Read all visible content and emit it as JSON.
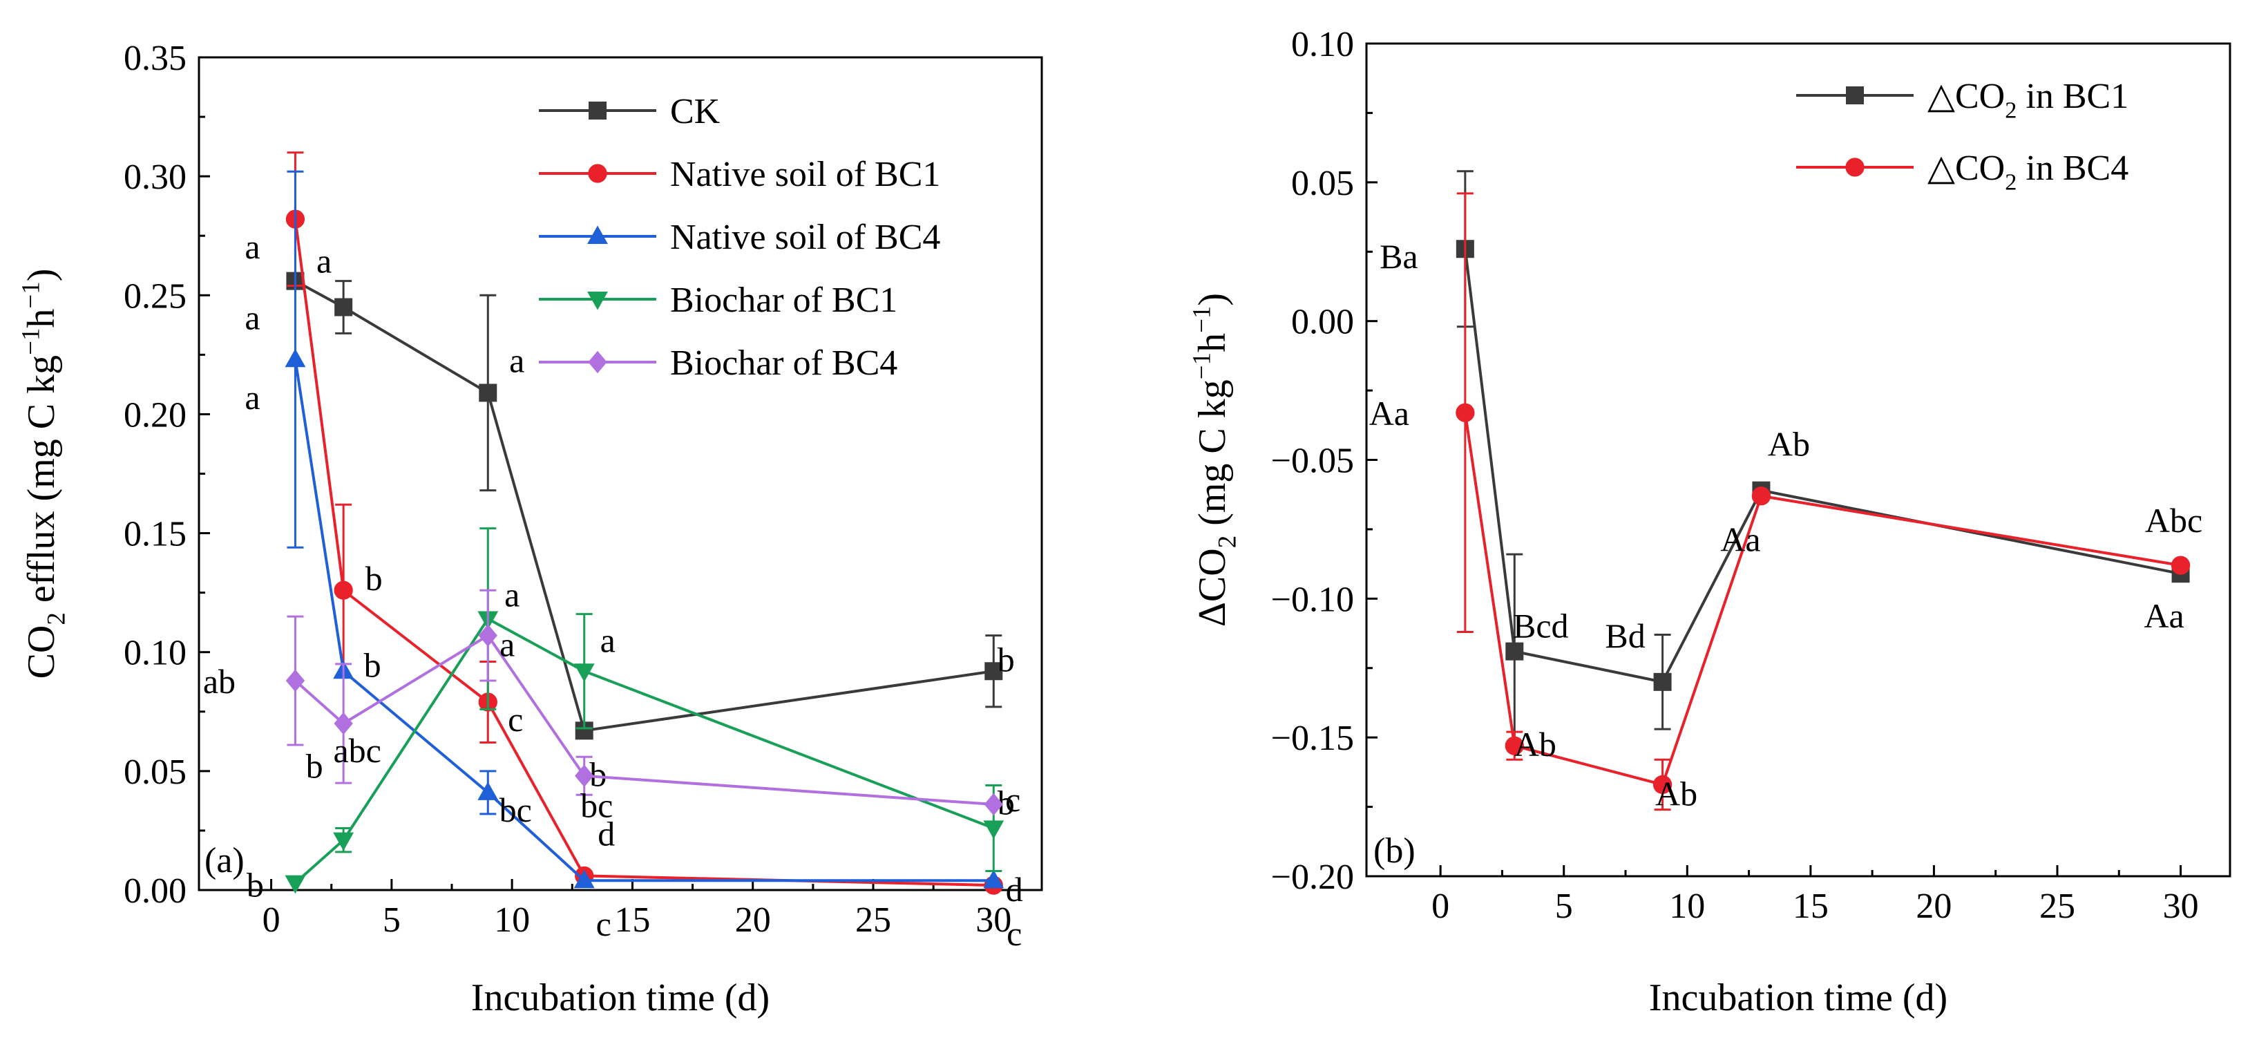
{
  "chart_data": [
    {
      "panel_label": "(a)",
      "type": "line",
      "xlabel": "Incubation time (d)",
      "ylabel_parts": [
        "CO",
        "2",
        " efflux (mg C kg",
        "−1",
        "h",
        "−1",
        ")"
      ],
      "xlim": [
        -3,
        32
      ],
      "ylim": [
        0,
        0.35
      ],
      "xticks": [
        0,
        5,
        10,
        15,
        20,
        25,
        30
      ],
      "xtick_labels": [
        "0",
        "5",
        "10",
        "15",
        "20",
        "25",
        "30"
      ],
      "yticks": [
        0,
        0.05,
        0.1,
        0.15,
        0.2,
        0.25,
        0.3,
        0.35
      ],
      "ytick_labels": [
        "0.00",
        "0.05",
        "0.10",
        "0.15",
        "0.20",
        "0.25",
        "0.30",
        "0.35"
      ],
      "legend_position": "top-right",
      "series": [
        {
          "name": "CK",
          "color": "#3a3a3a",
          "marker": "square",
          "x": [
            1,
            3,
            9,
            13,
            30
          ],
          "y": [
            0.256,
            0.245,
            0.209,
            0.067,
            0.092
          ],
          "err": [
            0.0,
            0.011,
            0.041,
            0.0,
            0.015
          ],
          "letters": [
            "a",
            "a",
            "a",
            "b",
            "b"
          ]
        },
        {
          "name": "Native soil of BC1",
          "color": "#e8212b",
          "marker": "circle",
          "x": [
            1,
            3,
            9,
            13,
            30
          ],
          "y": [
            0.282,
            0.126,
            0.079,
            0.006,
            0.002
          ],
          "err": [
            0.028,
            0.036,
            0.017,
            0.0,
            0.0
          ],
          "letters": [
            "a",
            "b",
            "c",
            "d",
            "c"
          ]
        },
        {
          "name": "Native soil of BC4",
          "color": "#1f5fd8",
          "marker": "triangle-up",
          "x": [
            1,
            3,
            9,
            13,
            30
          ],
          "y": [
            0.223,
            0.092,
            0.041,
            0.004,
            0.004
          ],
          "err": [
            0.079,
            0.0,
            0.009,
            0.0,
            0.0
          ],
          "letters": [
            "a",
            "b",
            "bc",
            "c",
            "d"
          ]
        },
        {
          "name": "Biochar of BC1",
          "color": "#19a058",
          "marker": "triangle-down",
          "x": [
            1,
            3,
            9,
            13,
            30
          ],
          "y": [
            0.003,
            0.021,
            0.114,
            0.092,
            0.026
          ],
          "err": [
            0.0,
            0.005,
            0.038,
            0.024,
            0.018
          ],
          "letters": [
            "b",
            "b",
            "a",
            "a",
            "b"
          ]
        },
        {
          "name": "Biochar of BC4",
          "color": "#b070e0",
          "marker": "diamond",
          "x": [
            1,
            3,
            9,
            13,
            30
          ],
          "y": [
            0.088,
            0.07,
            0.107,
            0.048,
            0.036
          ],
          "err": [
            0.027,
            0.025,
            0.019,
            0.008,
            0.0
          ],
          "letters": [
            "ab",
            "abc",
            "a",
            "bc",
            "c"
          ]
        }
      ]
    },
    {
      "panel_label": "(b)",
      "type": "line",
      "xlabel": "Incubation time (d)",
      "ylabel_parts": [
        "ΔCO",
        "2",
        " (mg C kg",
        "−1",
        "h",
        "−1",
        ")"
      ],
      "xlim": [
        -3,
        32
      ],
      "ylim": [
        -0.2,
        0.1
      ],
      "xticks": [
        0,
        5,
        10,
        15,
        20,
        25,
        30
      ],
      "xtick_labels": [
        "0",
        "5",
        "10",
        "15",
        "20",
        "25",
        "30"
      ],
      "yticks": [
        -0.2,
        -0.15,
        -0.1,
        -0.05,
        0,
        0.05,
        0.1
      ],
      "ytick_labels": [
        "−0.20",
        "−0.15",
        "−0.10",
        "−0.05",
        "0.00",
        "0.05",
        "0.10"
      ],
      "legend_position": "top-right",
      "series": [
        {
          "name_parts": [
            "△CO",
            "2",
            " in BC1"
          ],
          "color": "#3a3a3a",
          "marker": "square",
          "x": [
            1,
            3,
            9,
            13,
            30
          ],
          "y": [
            0.026,
            -0.119,
            -0.13,
            -0.061,
            -0.091
          ],
          "err": [
            0.028,
            0.035,
            0.017,
            0.0,
            0.0
          ],
          "letters": [
            "Ba",
            "Bcd",
            "Bd",
            "Ab",
            "Aa"
          ]
        },
        {
          "name_parts": [
            "△CO",
            "2",
            " in BC4"
          ],
          "color": "#e8212b",
          "marker": "circle",
          "x": [
            1,
            3,
            9,
            13,
            30
          ],
          "y": [
            -0.033,
            -0.153,
            -0.167,
            -0.063,
            -0.088
          ],
          "err": [
            0.079,
            0.005,
            0.009,
            0.0,
            0.0
          ],
          "letters": [
            "Aa",
            "Ab",
            "Ab",
            "Aa",
            "Abc"
          ]
        }
      ]
    }
  ]
}
